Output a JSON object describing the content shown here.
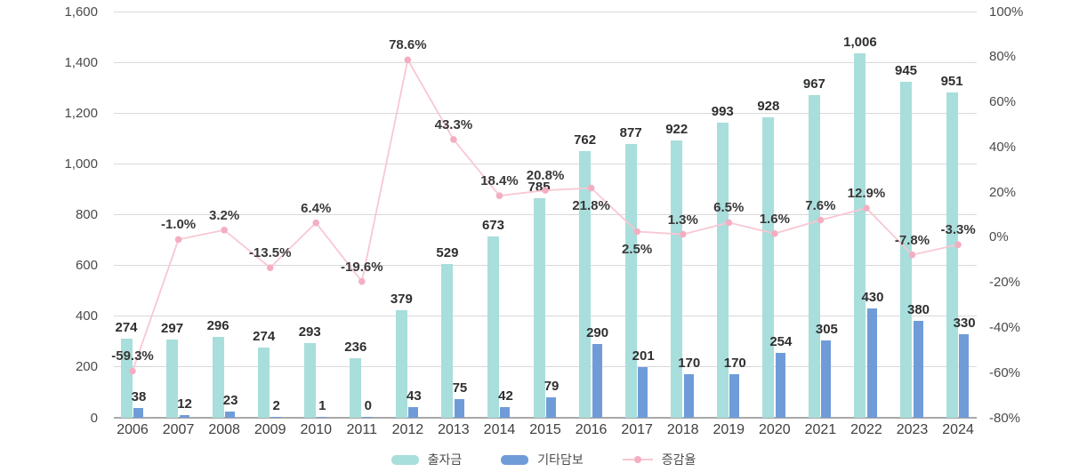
{
  "chart_data": {
    "type": "bar",
    "subtype": "combo-bar-line-dual-axis",
    "title": "",
    "categories": [
      "2006",
      "2007",
      "2008",
      "2009",
      "2010",
      "2011",
      "2012",
      "2013",
      "2014",
      "2015",
      "2016",
      "2017",
      "2018",
      "2019",
      "2020",
      "2021",
      "2022",
      "2023",
      "2024"
    ],
    "series": [
      {
        "name": "출자금",
        "type": "bar",
        "axis": "left",
        "color": "#a8dedb",
        "values": [
          274,
          297,
          296,
          274,
          293,
          236,
          379,
          529,
          673,
          785,
          762,
          877,
          922,
          993,
          928,
          967,
          1006,
          945,
          951
        ]
      },
      {
        "name": "기타담보",
        "type": "bar",
        "axis": "left",
        "color": "#6f9cd8",
        "values": [
          38,
          12,
          23,
          2,
          1,
          0,
          43,
          75,
          42,
          79,
          290,
          201,
          170,
          170,
          254,
          305,
          430,
          380,
          330
        ]
      },
      {
        "name": "증감율",
        "type": "line",
        "axis": "right",
        "color": "#f8c7d2",
        "point_color": "#f3aec2",
        "values": [
          -59.3,
          -1.0,
          3.2,
          -13.5,
          6.4,
          -19.6,
          78.6,
          43.3,
          18.4,
          20.8,
          21.8,
          2.5,
          1.3,
          6.5,
          1.6,
          7.6,
          12.9,
          -7.8,
          -3.3
        ],
        "label_positions": [
          "above",
          "above",
          "above",
          "above",
          "above",
          "above",
          "above",
          "above",
          "above",
          "above",
          "below",
          "below",
          "above",
          "above",
          "above",
          "above",
          "above",
          "above",
          "above"
        ]
      }
    ],
    "layout_hints": {
      "bar_height_equals_sum_of_both_bar_series": true,
      "grid": true,
      "legend_position": "bottom-center"
    },
    "axes": {
      "left": {
        "min": 0,
        "max": 1600,
        "ticks": [
          "1,600",
          "1,400",
          "1,200",
          "1,000",
          "800",
          "600",
          "400",
          "200",
          "0"
        ]
      },
      "right": {
        "min": -80,
        "max": 100,
        "ticks": [
          "100%",
          "80%",
          "60%",
          "40%",
          "20%",
          "0%",
          "-20%",
          "-40%",
          "-60%",
          "-80%"
        ]
      }
    },
    "colors": {
      "grid": "#d9d9d9",
      "axis_baseline": "#a9a9a9",
      "bar_teal": "#a8dedb",
      "bar_blue": "#6f9cd8",
      "line_pink": "#f8c7d2",
      "point_pink": "#f3aec2",
      "data_label_text": "#2f2f2f",
      "axis_tick_text": "#4a4a4a",
      "legend_text": "#4e4e4e"
    }
  }
}
